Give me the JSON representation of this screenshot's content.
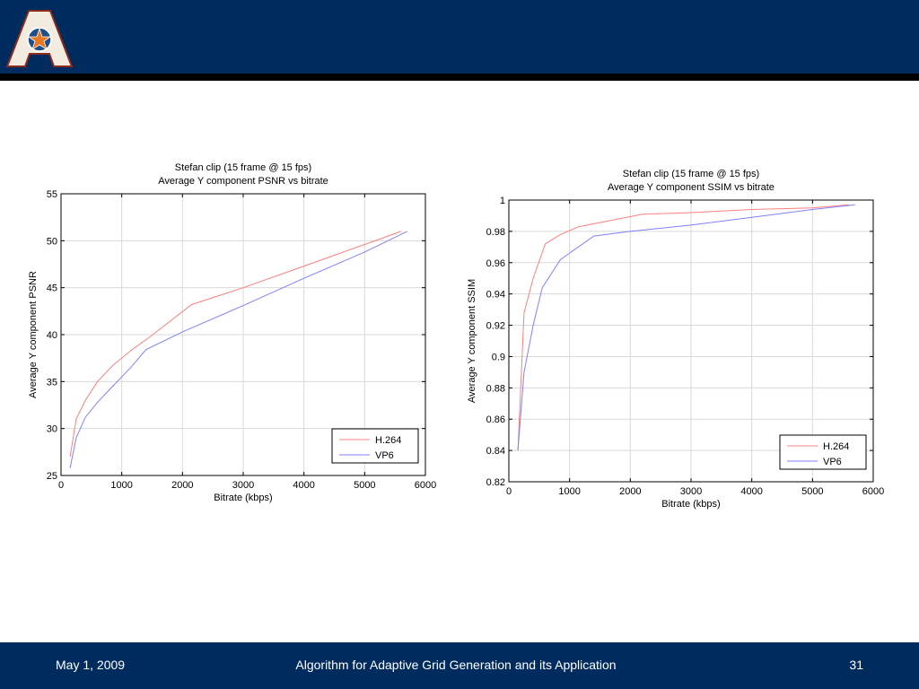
{
  "footer": {
    "date": "May 1, 2009",
    "title": "Algorithm for Adaptive Grid Generation and its Application",
    "page": "31"
  },
  "colors": {
    "header_bg": "#002b5f",
    "h264": "#ff8080",
    "vp6": "#8080ff"
  },
  "chart_data": [
    {
      "type": "line",
      "title": "Stefan clip (15 frame @ 15 fps)",
      "subtitle": "Average Y component PSNR vs bitrate",
      "xlabel": "Bitrate (kbps)",
      "ylabel": "Average Y component PSNR",
      "xlim": [
        0,
        6000
      ],
      "ylim": [
        25,
        55
      ],
      "xticks": [
        0,
        1000,
        2000,
        3000,
        4000,
        5000,
        6000
      ],
      "yticks": [
        25,
        30,
        35,
        40,
        45,
        50,
        55
      ],
      "grid": true,
      "legend": "bottom-right",
      "series": [
        {
          "name": "H.264",
          "color": "#ff8080",
          "x": [
            150,
            250,
            400,
            600,
            850,
            1150,
            1450,
            2150,
            3000,
            4000,
            5000,
            5600
          ],
          "y": [
            27,
            31,
            33,
            35,
            36.7,
            38.3,
            39.7,
            43.2,
            45,
            47.3,
            49.6,
            51
          ]
        },
        {
          "name": "VP6",
          "color": "#8080ff",
          "x": [
            150,
            250,
            400,
            600,
            850,
            1150,
            1400,
            2000,
            3000,
            4000,
            5000,
            5700
          ],
          "y": [
            25.8,
            29,
            31.2,
            32.8,
            34.5,
            36.5,
            38.4,
            40.3,
            43.1,
            46,
            48.8,
            51
          ]
        }
      ]
    },
    {
      "type": "line",
      "title": "Stefan clip (15 frame @ 15 fps)",
      "subtitle": "Average Y component SSIM vs bitrate",
      "xlabel": "Bitrate (kbps)",
      "ylabel": "Average Y component SSIM",
      "xlim": [
        0,
        6000
      ],
      "ylim": [
        0.82,
        1
      ],
      "xticks": [
        0,
        1000,
        2000,
        3000,
        4000,
        5000,
        6000
      ],
      "yticks": [
        0.82,
        0.84,
        0.86,
        0.88,
        0.9,
        0.92,
        0.94,
        0.96,
        0.98,
        1
      ],
      "ytick_labels": [
        "0.82",
        "0.84",
        "0.86",
        "0.88",
        "0.9",
        "0.92",
        "0.94",
        "0.96",
        "0.98",
        "1"
      ],
      "grid": true,
      "legend": "bottom-right",
      "series": [
        {
          "name": "H.264",
          "color": "#ff8080",
          "x": [
            150,
            250,
            400,
            600,
            850,
            1150,
            2200,
            3000,
            4000,
            5000,
            5600
          ],
          "y": [
            0.84,
            0.928,
            0.95,
            0.972,
            0.978,
            0.983,
            0.991,
            0.992,
            0.994,
            0.995,
            0.997
          ]
        },
        {
          "name": "VP6",
          "color": "#8080ff",
          "x": [
            150,
            250,
            400,
            550,
            850,
            1400,
            2000,
            3000,
            4000,
            5000,
            5700
          ],
          "y": [
            0.84,
            0.89,
            0.92,
            0.944,
            0.962,
            0.977,
            0.98,
            0.984,
            0.989,
            0.994,
            0.997
          ]
        }
      ]
    }
  ]
}
